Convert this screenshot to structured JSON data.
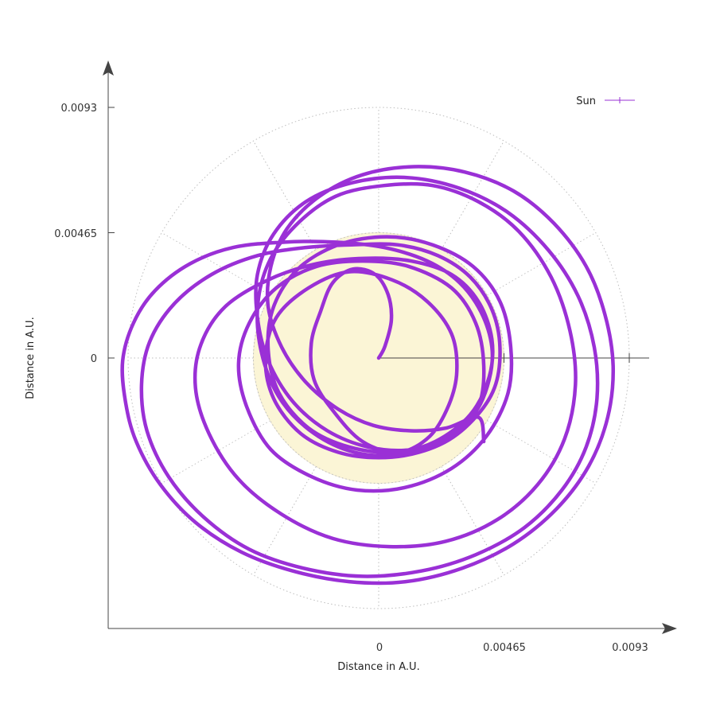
{
  "chart_data": {
    "type": "line",
    "title": "",
    "xlabel": "Distance in A.U.",
    "ylabel": "Distance in A.U.",
    "xlim": [
      -0.0108,
      0.0111
    ],
    "ylim": [
      -0.0101,
      0.0109
    ],
    "x_ticks": [
      "0",
      "0.00465",
      "0.0093"
    ],
    "y_ticks": [
      "0",
      "0.00465",
      "0.0093"
    ],
    "polar_grid": {
      "radii": [
        0.00465,
        0.0093
      ],
      "spoke_step_deg": 30,
      "style": "dotted"
    },
    "sun_disk": {
      "center": [
        0,
        0
      ],
      "radius": 0.00465,
      "color": "#fbf5d6"
    },
    "legend": {
      "position": "top-right",
      "entries": [
        {
          "label": "Sun",
          "color": "#9a30d6"
        }
      ]
    },
    "series": [
      {
        "name": "Sun",
        "color": "#9a30d6",
        "points": [
          [
            0.0,
            0.0
          ],
          [
            0.00023,
            0.00043
          ],
          [
            0.00047,
            0.0014
          ],
          [
            0.00035,
            0.00235
          ],
          [
            -0.00013,
            0.0031
          ],
          [
            -0.00095,
            0.0033
          ],
          [
            -0.0017,
            0.0028
          ],
          [
            -0.00215,
            0.00175
          ],
          [
            -0.0025,
            0.00055
          ],
          [
            -0.0024,
            -0.0008
          ],
          [
            -0.0017,
            -0.00195
          ],
          [
            -0.0006,
            -0.0031
          ],
          [
            0.00075,
            -0.0035
          ],
          [
            0.0019,
            -0.0029
          ],
          [
            0.0026,
            -0.00175
          ],
          [
            0.0029,
            -0.0005
          ],
          [
            0.0027,
            0.0009
          ],
          [
            0.0018,
            0.0021
          ],
          [
            0.0005,
            0.0029
          ],
          [
            -0.0011,
            0.0032
          ],
          [
            -0.0026,
            0.0026
          ],
          [
            -0.0038,
            0.0015
          ],
          [
            -0.0042,
            0.0
          ],
          [
            -0.0039,
            -0.0015
          ],
          [
            -0.0029,
            -0.0028
          ],
          [
            -0.0015,
            -0.0035
          ],
          [
            0.0,
            -0.0037
          ],
          [
            0.0015,
            -0.0035
          ],
          [
            0.0028,
            -0.0029
          ],
          [
            0.0037,
            -0.0018
          ],
          [
            0.0039,
            -0.0003
          ],
          [
            0.0036,
            0.0013
          ],
          [
            0.0027,
            0.0026
          ],
          [
            0.0011,
            0.0034
          ],
          [
            -0.0006,
            0.0036
          ],
          [
            -0.0023,
            0.0034
          ],
          [
            -0.0038,
            0.0026
          ],
          [
            -0.0048,
            0.0013
          ],
          [
            -0.0052,
            -0.0002
          ],
          [
            -0.0049,
            -0.0018
          ],
          [
            -0.004,
            -0.0034
          ],
          [
            -0.0025,
            -0.0044
          ],
          [
            -0.0008,
            -0.0049
          ],
          [
            0.001,
            -0.0048
          ],
          [
            0.0027,
            -0.0041
          ],
          [
            0.004,
            -0.0029
          ],
          [
            0.0048,
            -0.0013
          ],
          [
            0.0049,
            0.0004
          ],
          [
            0.0045,
            0.0021
          ],
          [
            0.0035,
            0.0034
          ],
          [
            0.002,
            0.0042
          ],
          [
            0.0003,
            0.0045
          ],
          [
            -0.0015,
            0.0042
          ],
          [
            -0.003,
            0.0033
          ],
          [
            -0.0039,
            0.0019
          ],
          [
            -0.0041,
            0.0003
          ],
          [
            -0.0037,
            -0.0013
          ],
          [
            -0.0026,
            -0.0026
          ],
          [
            -0.0011,
            -0.0033
          ],
          [
            0.0006,
            -0.0035
          ],
          [
            0.0021,
            -0.0031
          ],
          [
            0.0034,
            -0.0021
          ],
          [
            0.0041,
            -0.0007
          ],
          [
            0.0042,
            0.0007
          ],
          [
            0.0037,
            0.0021
          ],
          [
            0.0027,
            0.0031
          ],
          [
            0.0012,
            0.0036
          ],
          [
            -0.0005,
            0.0037
          ],
          [
            -0.0023,
            0.0035
          ],
          [
            -0.0041,
            0.0029
          ],
          [
            -0.0057,
            0.0019
          ],
          [
            -0.0066,
            0.0005
          ],
          [
            -0.0068,
            -0.0011
          ],
          [
            -0.0063,
            -0.0028
          ],
          [
            -0.0052,
            -0.0045
          ],
          [
            -0.0036,
            -0.0058
          ],
          [
            -0.0017,
            -0.0067
          ],
          [
            0.0004,
            -0.007
          ],
          [
            0.0025,
            -0.0068
          ],
          [
            0.0044,
            -0.006
          ],
          [
            0.0059,
            -0.0047
          ],
          [
            0.0069,
            -0.003
          ],
          [
            0.0073,
            -0.001
          ],
          [
            0.0071,
            0.001
          ],
          [
            0.0064,
            0.003
          ],
          [
            0.0052,
            0.0047
          ],
          [
            0.0037,
            0.0058
          ],
          [
            0.002,
            0.0064
          ],
          [
            0.0002,
            0.0064
          ],
          [
            -0.0016,
            0.006
          ],
          [
            -0.0031,
            0.0049
          ],
          [
            -0.0041,
            0.0035
          ],
          [
            -0.0045,
            0.0018
          ],
          [
            -0.0043,
            0.0
          ],
          [
            -0.0036,
            -0.0016
          ],
          [
            -0.0024,
            -0.0028
          ],
          [
            -0.0009,
            -0.0035
          ],
          [
            0.0007,
            -0.0036
          ],
          [
            0.0023,
            -0.0032
          ],
          [
            0.0035,
            -0.0023
          ],
          [
            0.0043,
            -0.0011
          ],
          [
            0.0045,
            0.0004
          ],
          [
            0.0042,
            0.0018
          ],
          [
            0.0034,
            0.003
          ],
          [
            0.0022,
            0.0038
          ],
          [
            0.0007,
            0.0042
          ],
          [
            -0.001,
            0.0042
          ],
          [
            -0.0027,
            0.0041
          ],
          [
            -0.0045,
            0.0038
          ],
          [
            -0.0062,
            0.0031
          ],
          [
            -0.0076,
            0.002
          ],
          [
            -0.0085,
            0.0006
          ],
          [
            -0.0088,
            -0.001
          ],
          [
            -0.0086,
            -0.0027
          ],
          [
            -0.0078,
            -0.0044
          ],
          [
            -0.0065,
            -0.0059
          ],
          [
            -0.0048,
            -0.0071
          ],
          [
            -0.0028,
            -0.0078
          ],
          [
            -0.0006,
            -0.0081
          ],
          [
            0.0016,
            -0.0079
          ],
          [
            0.0036,
            -0.0073
          ],
          [
            0.0054,
            -0.0063
          ],
          [
            0.0068,
            -0.0049
          ],
          [
            0.0077,
            -0.0033
          ],
          [
            0.0081,
            -0.0015
          ],
          [
            0.008,
            0.0004
          ],
          [
            0.0074,
            0.0023
          ],
          [
            0.0063,
            0.004
          ],
          [
            0.0048,
            0.0054
          ],
          [
            0.003,
            0.0063
          ],
          [
            0.001,
            0.0067
          ],
          [
            -0.001,
            0.0065
          ],
          [
            -0.0027,
            0.0058
          ],
          [
            -0.0039,
            0.0046
          ],
          [
            -0.0045,
            0.0031
          ],
          [
            -0.0045,
            0.0015
          ],
          [
            -0.0041,
            -0.0001
          ],
          [
            -0.0032,
            -0.0016
          ],
          [
            -0.0019,
            -0.0027
          ],
          [
            -0.0004,
            -0.0033
          ],
          [
            0.0012,
            -0.0034
          ],
          [
            0.0026,
            -0.0029
          ],
          [
            0.0036,
            -0.002
          ],
          [
            0.0041,
            -0.0008
          ],
          [
            0.0042,
            0.0004
          ],
          [
            0.0038,
            0.0017
          ],
          [
            0.003,
            0.0028
          ],
          [
            0.0018,
            0.0036
          ],
          [
            0.0002,
            0.0041
          ],
          [
            -0.0016,
            0.0043
          ],
          [
            -0.0035,
            0.0043
          ],
          [
            -0.0054,
            0.0041
          ],
          [
            -0.007,
            0.0035
          ],
          [
            -0.0083,
            0.0025
          ],
          [
            -0.0091,
            0.0013
          ],
          [
            -0.0095,
            -0.0001
          ],
          [
            -0.0094,
            -0.0016
          ],
          [
            -0.009,
            -0.0031
          ],
          [
            -0.0081,
            -0.0047
          ],
          [
            -0.0068,
            -0.0061
          ],
          [
            -0.0051,
            -0.0072
          ],
          [
            -0.0032,
            -0.0079
          ],
          [
            -0.0011,
            -0.0083
          ],
          [
            0.001,
            -0.0083
          ],
          [
            0.0031,
            -0.0078
          ],
          [
            0.005,
            -0.0069
          ],
          [
            0.0066,
            -0.0056
          ],
          [
            0.0078,
            -0.004
          ],
          [
            0.0085,
            -0.0022
          ],
          [
            0.0087,
            -0.0003
          ],
          [
            0.0084,
            0.0016
          ],
          [
            0.0077,
            0.0034
          ],
          [
            0.0065,
            0.005
          ],
          [
            0.005,
            0.0062
          ],
          [
            0.0032,
            0.0069
          ],
          [
            0.0013,
            0.0071
          ],
          [
            -0.0006,
            0.0068
          ],
          [
            -0.0022,
            0.006
          ],
          [
            -0.0034,
            0.0048
          ],
          [
            -0.004,
            0.0034
          ],
          [
            -0.0041,
            0.0019
          ],
          [
            -0.0036,
            0.0004
          ],
          [
            -0.0027,
            -0.0009
          ],
          [
            -0.0015,
            -0.0019
          ],
          [
            -0.0002,
            -0.0025
          ],
          [
            0.0012,
            -0.0027
          ],
          [
            0.0025,
            -0.0026
          ],
          [
            0.0037,
            -0.0022
          ],
          [
            0.0039,
            -0.0031
          ]
        ]
      }
    ]
  }
}
